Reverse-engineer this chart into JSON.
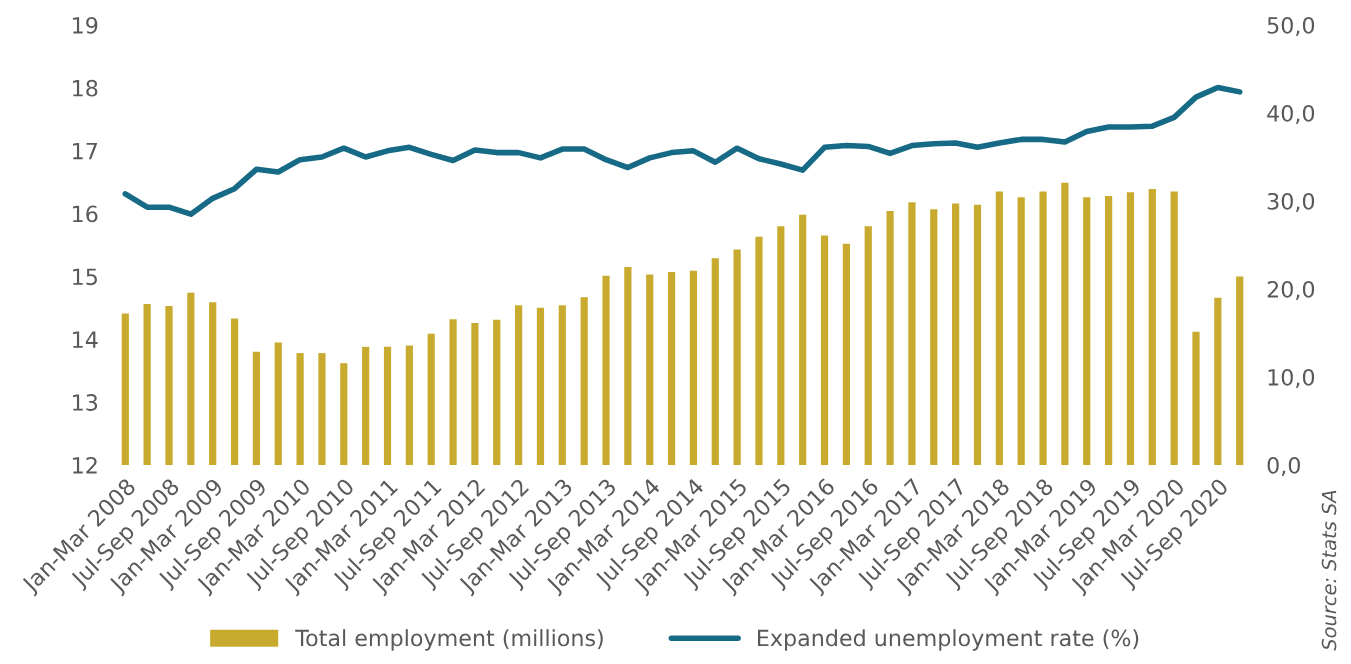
{
  "chart_data": {
    "type": "bar",
    "categories": [
      "Jan-Mar 2008",
      null,
      "Jul-Sep 2008",
      null,
      "Jan-Mar 2009",
      null,
      "Jul-Sep 2009",
      null,
      "Jan-Mar 2010",
      null,
      "Jul-Sep 2010",
      null,
      "Jan-Mar 2011",
      null,
      "Jul-Sep 2011",
      null,
      "Jan-Mar 2012",
      null,
      "Jul-Sep 2012",
      null,
      "Jan-Mar 2013",
      null,
      "Jul-Sep 2013",
      null,
      "Jan-Mar 2014",
      null,
      "Jul-Sep 2014",
      null,
      "Jan-Mar 2015",
      null,
      "Jul-Sep 2015",
      null,
      "Jan-Mar 2016",
      null,
      "Jul-Sep 2016",
      null,
      "Jan-Mar 2017",
      null,
      "Jul-Sep 2017",
      null,
      "Jan-Mar 2018",
      null,
      "Jul-Sep 2018",
      null,
      "Jan-Mar 2019",
      null,
      "Jul-Sep 2019",
      null,
      "Jan-Mar 2020",
      null,
      "Jul-Sep 2020",
      null
    ],
    "series": [
      {
        "name": "Total employment (millions)",
        "color": "#c8ab2e",
        "values": [
          14.41,
          14.56,
          14.53,
          14.74,
          14.59,
          14.33,
          13.8,
          13.95,
          13.78,
          13.78,
          13.62,
          13.88,
          13.88,
          13.9,
          14.09,
          14.32,
          14.26,
          14.31,
          14.54,
          14.5,
          14.54,
          14.67,
          15.01,
          15.15,
          15.03,
          15.07,
          15.09,
          15.29,
          15.43,
          15.63,
          15.8,
          15.98,
          15.65,
          15.52,
          15.8,
          16.04,
          16.18,
          16.07,
          16.16,
          16.14,
          16.35,
          16.26,
          16.35,
          16.49,
          16.26,
          16.28,
          16.34,
          16.39,
          16.35,
          14.12,
          14.66,
          15.0
        ]
      },
      {
        "name": "Expanded unemployment rate (%)",
        "type": "line",
        "axis": "y2",
        "color": "#176a86",
        "values": [
          30.8,
          29.3,
          29.3,
          28.5,
          30.3,
          31.4,
          33.6,
          33.3,
          34.7,
          35.0,
          36.0,
          35.0,
          35.7,
          36.1,
          35.3,
          34.6,
          35.8,
          35.5,
          35.5,
          34.9,
          35.9,
          35.9,
          34.7,
          33.8,
          34.9,
          35.5,
          35.7,
          34.4,
          36.0,
          34.8,
          34.2,
          33.5,
          36.1,
          36.3,
          36.2,
          35.4,
          36.3,
          36.5,
          36.6,
          36.1,
          36.6,
          37.0,
          37.0,
          36.7,
          37.9,
          38.4,
          38.4,
          38.5,
          39.5,
          41.8,
          42.9,
          42.4
        ]
      }
    ],
    "ylim": [
      12,
      19
    ],
    "yticks": [
      12,
      13,
      14,
      15,
      16,
      17,
      18,
      19
    ],
    "y2lim": [
      0,
      50
    ],
    "y2ticks": [
      {
        "value": 0,
        "label": "0,0"
      },
      {
        "value": 10,
        "label": "10,0"
      },
      {
        "value": 20,
        "label": "20,0"
      },
      {
        "value": 30,
        "label": "30,0"
      },
      {
        "value": 40,
        "label": "40,0"
      },
      {
        "value": 50,
        "label": "50,0"
      }
    ],
    "legend": "bottom",
    "grid": false,
    "annotations": [
      "Source: Stats SA"
    ]
  }
}
